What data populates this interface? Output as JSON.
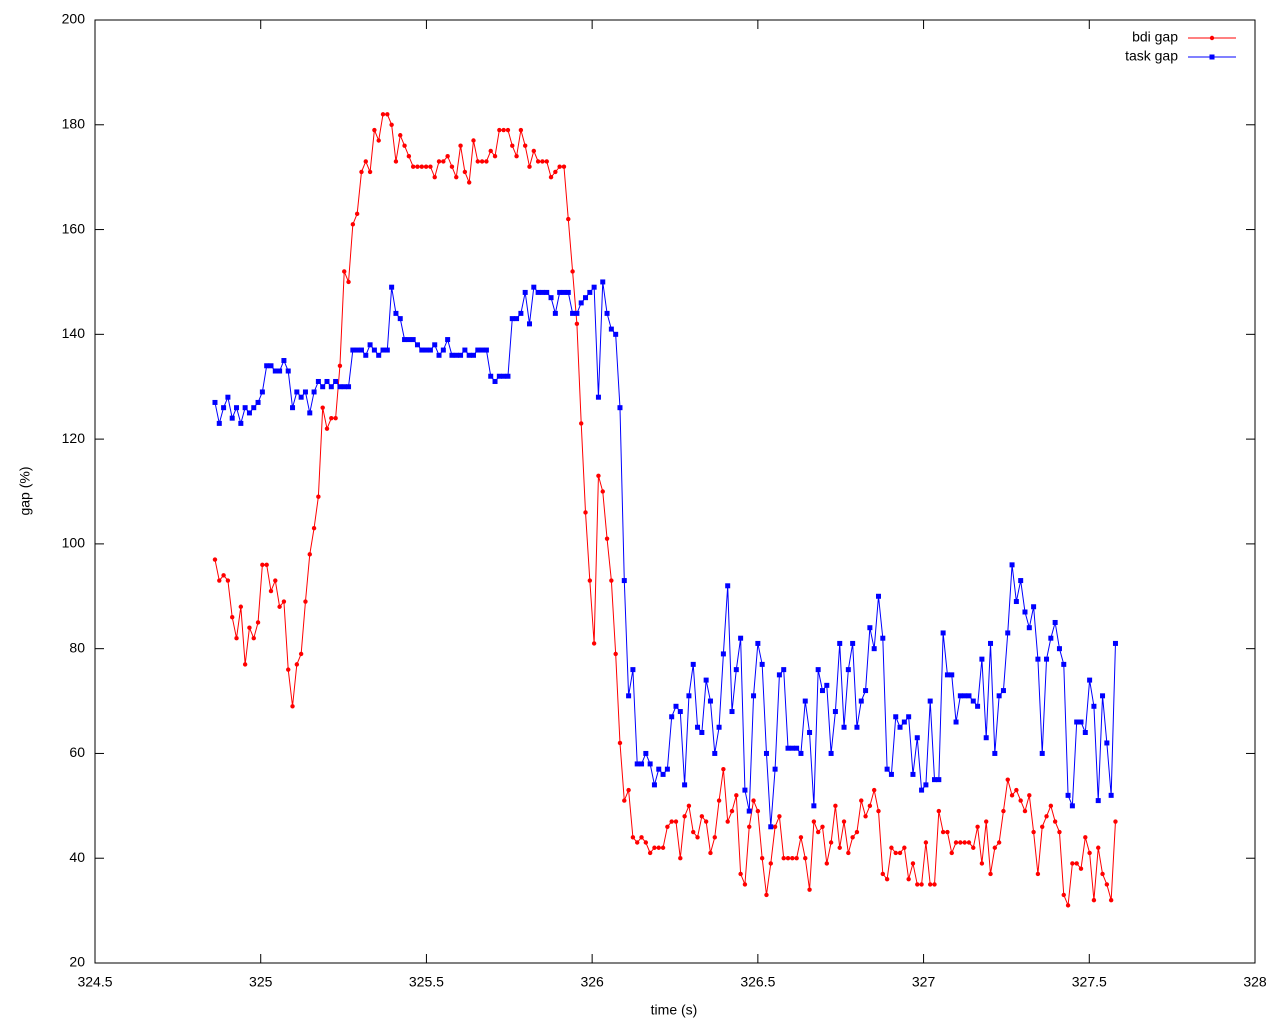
{
  "chart_data": {
    "type": "line",
    "xlabel": "time (s)",
    "ylabel": "gap (%)",
    "xlim": [
      324.5,
      328
    ],
    "xticks": [
      324.5,
      325,
      325.5,
      326,
      326.5,
      327,
      327.5,
      328
    ],
    "ylim": [
      20,
      200
    ],
    "yticks": [
      20,
      40,
      60,
      80,
      100,
      120,
      140,
      160,
      180,
      200
    ],
    "legend": "upper right",
    "x": [
      324.862,
      324.875,
      324.888,
      324.901,
      324.914,
      324.927,
      324.94,
      324.953,
      324.966,
      324.979,
      324.992,
      325.005,
      325.018,
      325.031,
      325.044,
      325.057,
      325.07,
      325.083,
      325.096,
      325.109,
      325.122,
      325.135,
      325.148,
      325.161,
      325.174,
      325.187,
      325.2,
      325.213,
      325.226,
      325.239,
      325.252,
      325.265,
      325.278,
      325.291,
      325.304,
      325.317,
      325.33,
      325.343,
      325.356,
      325.369,
      325.382,
      325.395,
      325.408,
      325.421,
      325.434,
      325.447,
      325.46,
      325.473,
      325.486,
      325.499,
      325.512,
      325.525,
      325.538,
      325.551,
      325.564,
      325.577,
      325.59,
      325.603,
      325.616,
      325.629,
      325.642,
      325.655,
      325.668,
      325.681,
      325.694,
      325.707,
      325.72,
      325.733,
      325.746,
      325.759,
      325.772,
      325.785,
      325.798,
      325.811,
      325.824,
      325.837,
      325.85,
      325.863,
      325.876,
      325.889,
      325.902,
      325.915,
      325.928,
      325.941,
      325.954,
      325.967,
      325.98,
      325.993,
      326.006,
      326.019,
      326.032,
      326.045,
      326.058,
      326.071,
      326.084,
      326.097,
      326.11,
      326.123,
      326.136,
      326.149,
      326.162,
      326.175,
      326.188,
      326.201,
      326.214,
      326.227,
      326.24,
      326.253,
      326.266,
      326.279,
      326.292,
      326.305,
      326.318,
      326.331,
      326.344,
      326.357,
      326.37,
      326.383,
      326.396,
      326.409,
      326.422,
      326.435,
      326.448,
      326.461,
      326.474,
      326.487,
      326.5,
      326.513,
      326.526,
      326.539,
      326.552,
      326.565,
      326.578,
      326.591,
      326.604,
      326.617,
      326.63,
      326.643,
      326.656,
      326.669,
      326.682,
      326.695,
      326.708,
      326.721,
      326.734,
      326.747,
      326.76,
      326.773,
      326.786,
      326.799,
      326.812,
      326.825,
      326.838,
      326.851,
      326.864,
      326.877,
      326.89,
      326.903,
      326.916,
      326.929,
      326.942,
      326.955,
      326.968,
      326.981,
      326.994,
      327.007,
      327.02,
      327.033,
      327.046,
      327.059,
      327.072,
      327.085,
      327.098,
      327.111,
      327.124,
      327.137,
      327.15,
      327.163,
      327.176,
      327.189,
      327.202,
      327.215,
      327.228,
      327.241,
      327.254,
      327.267,
      327.28,
      327.293,
      327.306,
      327.319,
      327.332,
      327.345,
      327.358,
      327.371,
      327.384,
      327.397,
      327.41,
      327.423,
      327.436,
      327.449,
      327.462,
      327.475,
      327.488,
      327.501,
      327.514,
      327.527,
      327.54,
      327.553,
      327.566,
      327.579
    ],
    "series": [
      {
        "name": "bdi gap",
        "color": "#ff0000",
        "marker": "circle",
        "values": [
          97,
          93,
          94,
          93,
          86,
          82,
          88,
          77,
          84,
          82,
          85,
          96,
          96,
          91,
          93,
          88,
          89,
          76,
          69,
          77,
          79,
          89,
          98,
          103,
          109,
          126,
          122,
          124,
          124,
          134,
          152,
          150,
          161,
          163,
          171,
          173,
          171,
          179,
          177,
          182,
          182,
          180,
          173,
          178,
          176,
          174,
          172,
          172,
          172,
          172,
          172,
          170,
          173,
          173,
          174,
          172,
          170,
          176,
          171,
          169,
          177,
          173,
          173,
          173,
          175,
          174,
          179,
          179,
          179,
          176,
          174,
          179,
          176,
          172,
          175,
          173,
          173,
          173,
          170,
          171,
          172,
          172,
          162,
          152,
          142,
          123,
          106,
          93,
          81,
          113,
          110,
          101,
          93,
          79,
          62,
          51,
          53,
          44,
          43,
          44,
          43,
          41,
          42,
          42,
          42,
          46,
          47,
          47,
          40,
          48,
          50,
          45,
          44,
          48,
          47,
          41,
          44,
          51,
          57,
          47,
          49,
          52,
          37,
          35,
          46,
          51,
          49,
          40,
          33,
          39,
          46,
          48,
          40,
          40,
          40,
          40,
          44,
          40,
          34,
          47,
          45,
          46,
          39,
          43,
          50,
          42,
          47,
          41,
          44,
          45,
          51,
          48,
          50,
          53,
          49,
          37,
          36,
          42,
          41,
          41,
          42,
          36,
          39,
          35,
          35,
          43,
          35,
          35,
          49,
          45,
          45,
          41,
          43,
          43,
          43,
          43,
          42,
          46,
          39,
          47,
          37,
          42,
          43,
          49,
          55,
          52,
          53,
          51,
          49,
          52,
          45,
          37,
          46,
          48,
          50,
          47,
          45,
          33,
          31,
          39,
          39,
          38,
          44,
          41,
          32,
          42,
          37,
          35,
          32,
          47
        ]
      },
      {
        "name": "task gap",
        "color": "#0000ff",
        "marker": "square",
        "values": [
          127,
          123,
          126,
          128,
          124,
          126,
          123,
          126,
          125,
          126,
          127,
          129,
          134,
          134,
          133,
          133,
          135,
          133,
          126,
          129,
          128,
          129,
          125,
          129,
          131,
          130,
          131,
          130,
          131,
          130,
          130,
          130,
          137,
          137,
          137,
          136,
          138,
          137,
          136,
          137,
          137,
          149,
          144,
          143,
          139,
          139,
          139,
          138,
          137,
          137,
          137,
          138,
          136,
          137,
          139,
          136,
          136,
          136,
          137,
          136,
          136,
          137,
          137,
          137,
          132,
          131,
          132,
          132,
          132,
          143,
          143,
          144,
          148,
          142,
          149,
          148,
          148,
          148,
          147,
          144,
          148,
          148,
          148,
          144,
          144,
          146,
          147,
          148,
          149,
          128,
          150,
          144,
          141,
          140,
          126,
          93,
          71,
          76,
          58,
          58,
          60,
          58,
          54,
          57,
          56,
          57,
          67,
          69,
          68,
          54,
          71,
          77,
          65,
          64,
          74,
          70,
          60,
          65,
          79,
          92,
          68,
          76,
          82,
          53,
          49,
          71,
          81,
          77,
          60,
          46,
          57,
          75,
          76,
          61,
          61,
          61,
          60,
          70,
          64,
          50,
          76,
          72,
          73,
          60,
          68,
          81,
          65,
          76,
          81,
          65,
          70,
          72,
          84,
          80,
          90,
          82,
          57,
          56,
          67,
          65,
          66,
          67,
          56,
          63,
          53,
          54,
          70,
          55,
          55,
          83,
          75,
          75,
          66,
          71,
          71,
          71,
          70,
          69,
          78,
          63,
          81,
          60,
          71,
          72,
          83,
          96,
          89,
          93,
          87,
          84,
          88,
          78,
          60,
          78,
          82,
          85,
          80,
          77,
          52,
          50,
          66,
          66,
          64,
          74,
          69,
          51,
          71,
          62,
          52,
          81
        ]
      }
    ]
  }
}
